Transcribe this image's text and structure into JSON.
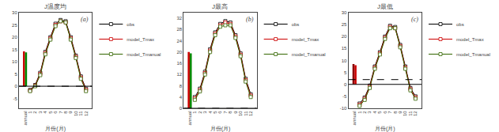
{
  "chart_data": [
    {
      "type": "line",
      "title": "J温度均",
      "x_label": "月份(月)",
      "categories": [
        "annual",
        "1",
        "2",
        "3",
        "4",
        "5",
        "6",
        "7",
        "8",
        "9",
        "10",
        "11",
        "12"
      ],
      "series": [
        {
          "name": "obs",
          "color": "#000000",
          "marker": "square",
          "line_style": "solid",
          "values": [
            null,
            -1.5,
            0.5,
            5.5,
            14.0,
            20.0,
            25.5,
            27.0,
            26.5,
            20.0,
            12.5,
            4.0,
            -1.0
          ]
        },
        {
          "name": "model_Tmax",
          "color": "#CC0000",
          "marker": "square",
          "line_style": "solid",
          "values": [
            null,
            -1.8,
            0.2,
            5.0,
            13.5,
            19.5,
            25.0,
            26.5,
            26.0,
            19.5,
            12.0,
            3.5,
            -1.5
          ]
        },
        {
          "name": "model_Tmanual",
          "color": "#336600",
          "marker": "square",
          "line_style": "solid",
          "values": [
            null,
            -2.0,
            0.0,
            4.5,
            13.0,
            19.0,
            24.5,
            26.5,
            26.0,
            19.0,
            11.5,
            3.0,
            -2.0
          ]
        },
        {
          "type": "bar",
          "color": "#CC0000",
          "values": [
            14.2,
            null,
            null,
            null,
            null,
            null,
            null,
            null,
            null,
            null,
            null,
            null,
            null
          ]
        },
        {
          "type": "bar",
          "color": "#008800",
          "values": [
            13.8,
            null,
            null,
            null,
            null,
            null,
            null,
            null,
            null,
            null,
            null,
            null,
            null
          ]
        }
      ],
      "hlines": [
        {
          "value": 0,
          "color": "#000000",
          "line_style": "solid"
        },
        {
          "value": 0,
          "color": "#000000",
          "line_style": "dashed"
        }
      ],
      "annotations": [
        "(a)"
      ],
      "ylim": [
        -9,
        30
      ],
      "yticks": [
        -5,
        0,
        5,
        10,
        15,
        20,
        25,
        30
      ],
      "grid": false,
      "legend": "right"
    },
    {
      "type": "line",
      "title": "J最高",
      "x_label": "月份(月)",
      "categories": [
        "annual",
        "1",
        "2",
        "3",
        "4",
        "5",
        "6",
        "7",
        "8",
        "9",
        "10",
        "11",
        "12"
      ],
      "series": [
        {
          "name": "obs",
          "color": "#000000",
          "marker": "square",
          "line_style": "solid",
          "values": [
            null,
            4.0,
            7.0,
            13.0,
            21.0,
            27.0,
            30.0,
            31.0,
            30.5,
            26.0,
            19.5,
            10.5,
            5.0
          ]
        },
        {
          "name": "model_Tmax",
          "color": "#CC0000",
          "marker": "square",
          "line_style": "solid",
          "values": [
            null,
            3.5,
            6.5,
            12.5,
            20.5,
            26.5,
            29.5,
            30.5,
            30.0,
            25.5,
            19.0,
            10.0,
            4.5
          ]
        },
        {
          "name": "model_Tmanual",
          "color": "#336600",
          "marker": "square",
          "line_style": "solid",
          "values": [
            null,
            3.0,
            6.0,
            12.0,
            20.0,
            26.0,
            29.0,
            29.5,
            29.5,
            25.0,
            18.5,
            9.5,
            4.0
          ]
        },
        {
          "type": "bar",
          "color": "#CC0000",
          "values": [
            20.0,
            null,
            null,
            null,
            null,
            null,
            null,
            null,
            null,
            null,
            null,
            null,
            null
          ]
        },
        {
          "type": "bar",
          "color": "#008800",
          "values": [
            19.5,
            null,
            null,
            null,
            null,
            null,
            null,
            null,
            null,
            null,
            null,
            null,
            null
          ]
        }
      ],
      "hlines": [
        {
          "value": 0,
          "color": "#000000",
          "line_style": "solid"
        },
        {
          "value": 0,
          "color": "#000000",
          "line_style": "dashed"
        }
      ],
      "annotations": [
        "(b)"
      ],
      "ylim": [
        0,
        34
      ],
      "yticks": [
        0,
        4,
        8,
        12,
        16,
        20,
        24,
        28,
        32
      ],
      "grid": false,
      "legend": "right"
    },
    {
      "type": "line",
      "title": "J最低",
      "x_label": "月份(月)",
      "categories": [
        "annual",
        "1",
        "2",
        "3",
        "4",
        "5",
        "6",
        "7",
        "8",
        "9",
        "10",
        "11",
        "12"
      ],
      "series": [
        {
          "name": "obs",
          "color": "#000000",
          "marker": "square",
          "line_style": "solid",
          "values": [
            null,
            -8.0,
            -5.5,
            -0.5,
            7.5,
            13.5,
            20.0,
            24.5,
            24.0,
            16.5,
            7.5,
            -1.5,
            -5.0
          ]
        },
        {
          "name": "model_Tmax",
          "color": "#CC0000",
          "marker": "square",
          "line_style": "solid",
          "values": [
            null,
            -8.5,
            -6.0,
            -1.0,
            7.0,
            13.0,
            19.5,
            24.0,
            23.5,
            16.0,
            7.0,
            -2.0,
            -5.5
          ]
        },
        {
          "name": "model_Tmanual",
          "color": "#336600",
          "marker": "square",
          "line_style": "solid",
          "values": [
            null,
            -9.0,
            -6.5,
            -1.5,
            6.5,
            12.5,
            19.0,
            23.5,
            23.5,
            15.5,
            6.5,
            -2.5,
            -6.0
          ]
        },
        {
          "type": "bar",
          "color": "#8B0000",
          "values": [
            8.5,
            null,
            null,
            null,
            null,
            null,
            null,
            null,
            null,
            null,
            null,
            null,
            null
          ]
        },
        {
          "type": "bar",
          "color": "#CC0000",
          "values": [
            8.0,
            null,
            null,
            null,
            null,
            null,
            null,
            null,
            null,
            null,
            null,
            null,
            null
          ]
        }
      ],
      "hlines": [
        {
          "value": 0,
          "color": "#000000",
          "line_style": "solid"
        },
        {
          "value": 2,
          "color": "#000000",
          "line_style": "dashed"
        }
      ],
      "annotations": [
        "(c)"
      ],
      "ylim": [
        -10,
        30
      ],
      "yticks": [
        -10,
        -5,
        0,
        5,
        10,
        15,
        20,
        25,
        30
      ],
      "grid": false,
      "legend": "right"
    }
  ]
}
